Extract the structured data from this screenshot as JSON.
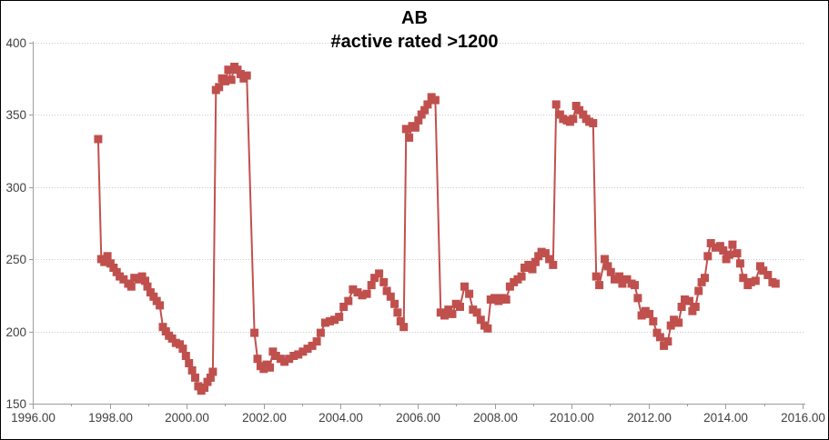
{
  "chart": {
    "title": "AB",
    "subtitle": "#active rated >1200"
  },
  "chart_data": {
    "type": "line",
    "title": "AB",
    "subtitle": "#active rated >1200",
    "xlabel": "",
    "ylabel": "",
    "xlim": [
      1996,
      2016.05
    ],
    "ylim": [
      150,
      400
    ],
    "grid": true,
    "legend_position": "none",
    "marker": "square",
    "x_ticks": [
      1996,
      1998,
      2000,
      2002,
      2004,
      2006,
      2008,
      2010,
      2012,
      2014,
      2016
    ],
    "x_tick_labels": [
      "1996.00",
      "1998.00",
      "2000.00",
      "2002.00",
      "2004.00",
      "2006.00",
      "2008.00",
      "2010.00",
      "2012.00",
      "2014.00",
      "2016.00"
    ],
    "x_minor_ticks": [
      1997,
      1999,
      2001,
      2003,
      2005,
      2007,
      2009,
      2011,
      2013,
      2015
    ],
    "y_ticks": [
      150,
      200,
      250,
      300,
      350,
      400
    ],
    "y_tick_labels": [
      "150",
      "200",
      "250",
      "300",
      "350",
      "400"
    ],
    "colors": {
      "series": "#C0504D",
      "grid": "#C9C9C9",
      "axis": "#9C9C9C",
      "tick_text": "#404040",
      "title_text": "#000000",
      "border": "#000000"
    },
    "series": [
      {
        "name": "#active rated >1200",
        "color": "#C0504D",
        "points": [
          [
            1997.7,
            333
          ],
          [
            1997.78,
            250
          ],
          [
            1997.86,
            248
          ],
          [
            1997.94,
            252
          ],
          [
            1998.02,
            247
          ],
          [
            1998.1,
            244
          ],
          [
            1998.18,
            241
          ],
          [
            1998.26,
            238
          ],
          [
            1998.36,
            236
          ],
          [
            1998.48,
            233
          ],
          [
            1998.56,
            231
          ],
          [
            1998.64,
            237
          ],
          [
            1998.76,
            236
          ],
          [
            1998.84,
            238
          ],
          [
            1998.92,
            235
          ],
          [
            1998.98,
            231
          ],
          [
            1999.06,
            227
          ],
          [
            1999.14,
            224
          ],
          [
            1999.22,
            221
          ],
          [
            1999.3,
            218
          ],
          [
            1999.38,
            203
          ],
          [
            1999.46,
            200
          ],
          [
            1999.54,
            197
          ],
          [
            1999.62,
            195
          ],
          [
            1999.72,
            192
          ],
          [
            1999.82,
            191
          ],
          [
            1999.9,
            188
          ],
          [
            1999.98,
            183
          ],
          [
            2000.06,
            178
          ],
          [
            2000.14,
            173
          ],
          [
            2000.22,
            168
          ],
          [
            2000.3,
            162
          ],
          [
            2000.38,
            159
          ],
          [
            2000.46,
            161
          ],
          [
            2000.54,
            165
          ],
          [
            2000.62,
            168
          ],
          [
            2000.68,
            172
          ],
          [
            2000.76,
            367
          ],
          [
            2000.84,
            369
          ],
          [
            2000.92,
            375
          ],
          [
            2001.0,
            373
          ],
          [
            2001.08,
            381
          ],
          [
            2001.16,
            374
          ],
          [
            2001.24,
            383
          ],
          [
            2001.32,
            381
          ],
          [
            2001.4,
            378
          ],
          [
            2001.48,
            375
          ],
          [
            2001.56,
            377
          ],
          [
            2001.76,
            199
          ],
          [
            2001.84,
            181
          ],
          [
            2001.92,
            176
          ],
          [
            2002.0,
            174
          ],
          [
            2002.08,
            177
          ],
          [
            2002.16,
            175
          ],
          [
            2002.24,
            186
          ],
          [
            2002.32,
            183
          ],
          [
            2002.44,
            181
          ],
          [
            2002.54,
            179
          ],
          [
            2002.66,
            181
          ],
          [
            2002.78,
            183
          ],
          [
            2002.9,
            184
          ],
          [
            2003.02,
            186
          ],
          [
            2003.14,
            188
          ],
          [
            2003.26,
            190
          ],
          [
            2003.38,
            193
          ],
          [
            2003.48,
            199
          ],
          [
            2003.6,
            206
          ],
          [
            2003.72,
            207
          ],
          [
            2003.84,
            208
          ],
          [
            2003.96,
            210
          ],
          [
            2004.08,
            217
          ],
          [
            2004.2,
            221
          ],
          [
            2004.32,
            229
          ],
          [
            2004.44,
            227
          ],
          [
            2004.56,
            225
          ],
          [
            2004.68,
            226
          ],
          [
            2004.8,
            232
          ],
          [
            2004.88,
            237
          ],
          [
            2005.0,
            240
          ],
          [
            2005.12,
            234
          ],
          [
            2005.2,
            228
          ],
          [
            2005.3,
            224
          ],
          [
            2005.4,
            219
          ],
          [
            2005.48,
            213
          ],
          [
            2005.56,
            207
          ],
          [
            2005.64,
            203
          ],
          [
            2005.7,
            340
          ],
          [
            2005.78,
            334
          ],
          [
            2005.86,
            342
          ],
          [
            2005.94,
            341
          ],
          [
            2006.02,
            346
          ],
          [
            2006.1,
            350
          ],
          [
            2006.18,
            353
          ],
          [
            2006.26,
            357
          ],
          [
            2006.36,
            362
          ],
          [
            2006.46,
            360
          ],
          [
            2006.6,
            213
          ],
          [
            2006.7,
            211
          ],
          [
            2006.8,
            215
          ],
          [
            2006.9,
            212
          ],
          [
            2007.0,
            219
          ],
          [
            2007.1,
            217
          ],
          [
            2007.22,
            231
          ],
          [
            2007.34,
            226
          ],
          [
            2007.44,
            215
          ],
          [
            2007.54,
            213
          ],
          [
            2007.64,
            208
          ],
          [
            2007.74,
            204
          ],
          [
            2007.82,
            202
          ],
          [
            2007.9,
            222
          ],
          [
            2008.0,
            223
          ],
          [
            2008.1,
            221
          ],
          [
            2008.2,
            223
          ],
          [
            2008.3,
            222
          ],
          [
            2008.4,
            231
          ],
          [
            2008.5,
            234
          ],
          [
            2008.6,
            236
          ],
          [
            2008.7,
            238
          ],
          [
            2008.78,
            244
          ],
          [
            2008.88,
            246
          ],
          [
            2008.98,
            243
          ],
          [
            2009.06,
            248
          ],
          [
            2009.14,
            252
          ],
          [
            2009.22,
            255
          ],
          [
            2009.32,
            254
          ],
          [
            2009.42,
            250
          ],
          [
            2009.52,
            246
          ],
          [
            2009.6,
            357
          ],
          [
            2009.7,
            350
          ],
          [
            2009.78,
            347
          ],
          [
            2009.88,
            346
          ],
          [
            2009.96,
            345
          ],
          [
            2010.04,
            347
          ],
          [
            2010.12,
            356
          ],
          [
            2010.2,
            353
          ],
          [
            2010.3,
            350
          ],
          [
            2010.38,
            347
          ],
          [
            2010.46,
            345
          ],
          [
            2010.56,
            344
          ],
          [
            2010.64,
            238
          ],
          [
            2010.72,
            232
          ],
          [
            2010.86,
            250
          ],
          [
            2010.94,
            245
          ],
          [
            2011.02,
            241
          ],
          [
            2011.12,
            236
          ],
          [
            2011.24,
            238
          ],
          [
            2011.32,
            233
          ],
          [
            2011.44,
            236
          ],
          [
            2011.56,
            233
          ],
          [
            2011.64,
            232
          ],
          [
            2011.72,
            223
          ],
          [
            2011.82,
            211
          ],
          [
            2011.92,
            214
          ],
          [
            2012.02,
            212
          ],
          [
            2012.12,
            207
          ],
          [
            2012.22,
            199
          ],
          [
            2012.3,
            196
          ],
          [
            2012.4,
            190
          ],
          [
            2012.5,
            193
          ],
          [
            2012.58,
            204
          ],
          [
            2012.66,
            208
          ],
          [
            2012.78,
            206
          ],
          [
            2012.86,
            217
          ],
          [
            2012.94,
            222
          ],
          [
            2013.06,
            221
          ],
          [
            2013.14,
            214
          ],
          [
            2013.22,
            217
          ],
          [
            2013.3,
            228
          ],
          [
            2013.38,
            234
          ],
          [
            2013.46,
            237
          ],
          [
            2013.54,
            252
          ],
          [
            2013.62,
            261
          ],
          [
            2013.74,
            258
          ],
          [
            2013.86,
            259
          ],
          [
            2013.94,
            256
          ],
          [
            2014.02,
            250
          ],
          [
            2014.1,
            253
          ],
          [
            2014.18,
            260
          ],
          [
            2014.3,
            254
          ],
          [
            2014.38,
            247
          ],
          [
            2014.46,
            237
          ],
          [
            2014.58,
            232
          ],
          [
            2014.66,
            234
          ],
          [
            2014.78,
            235
          ],
          [
            2014.9,
            245
          ],
          [
            2014.98,
            242
          ],
          [
            2015.1,
            239
          ],
          [
            2015.22,
            234
          ],
          [
            2015.3,
            233
          ]
        ]
      }
    ]
  }
}
